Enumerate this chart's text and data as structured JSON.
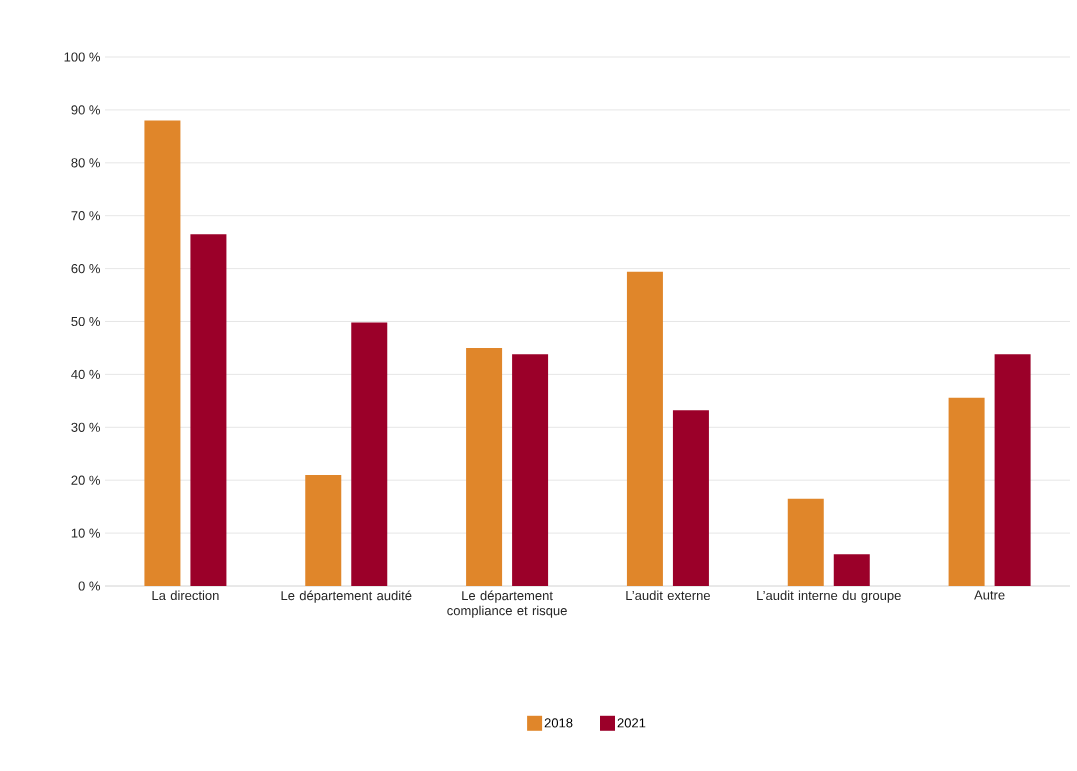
{
  "chart_data": {
    "type": "bar",
    "categories": [
      "La direction",
      "Le département audité",
      "Le département compliance et risque",
      "L’audit externe",
      "L’audit interne du groupe",
      "Autre"
    ],
    "series": [
      {
        "name": "2018",
        "color": "#e0862a",
        "values": [
          88,
          21,
          45,
          59.4,
          16.5,
          35.6
        ]
      },
      {
        "name": "2021",
        "color": "#9b0029",
        "values": [
          66.5,
          49.8,
          43.8,
          33.2,
          6,
          43.8
        ]
      }
    ],
    "ylim": [
      0,
      100
    ],
    "yticks": [
      {
        "value": 0,
        "label": "0 %"
      },
      {
        "value": 10,
        "label": "10 %"
      },
      {
        "value": 20,
        "label": "20 %"
      },
      {
        "value": 30,
        "label": "30 %"
      },
      {
        "value": 40,
        "label": "40 %"
      },
      {
        "value": 50,
        "label": "50 %"
      },
      {
        "value": 60,
        "label": "60 %"
      },
      {
        "value": 70,
        "label": "70 %"
      },
      {
        "value": 80,
        "label": "80 %"
      },
      {
        "value": 90,
        "label": "90 %"
      },
      {
        "value": 100,
        "label": "100 %"
      }
    ],
    "grid": "y",
    "legend": "bottom"
  }
}
